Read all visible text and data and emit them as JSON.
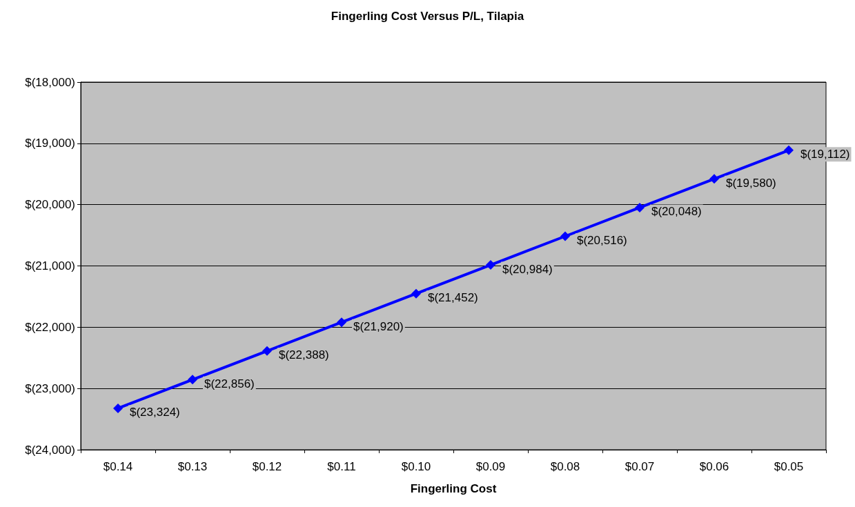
{
  "chart_data": {
    "type": "line",
    "title": "Fingerling Cost Versus P/L, Tilapia",
    "xlabel": "Fingerling Cost",
    "categories": [
      "$0.14",
      "$0.13",
      "$0.12",
      "$0.11",
      "$0.10",
      "$0.09",
      "$0.08",
      "$0.07",
      "$0.06",
      "$0.05"
    ],
    "series": [
      {
        "color": "#0000ff",
        "values": [
          -23324,
          -22856,
          -22388,
          -21920,
          -21452,
          -20984,
          -20516,
          -20048,
          -19580,
          -19112
        ],
        "value_labels": [
          "$(23,324)",
          "$(22,856)",
          "$(22,388)",
          "$(21,920)",
          "$(21,452)",
          "$(20,984)",
          "$(20,516)",
          "$(20,048)",
          "$(19,580)",
          "$(19,112)"
        ]
      }
    ],
    "ylim": [
      -24000,
      -18000
    ],
    "yticks": [
      {
        "value": -24000,
        "label": "$(24,000)"
      },
      {
        "value": -23000,
        "label": "$(23,000)"
      },
      {
        "value": -22000,
        "label": "$(22,000)"
      },
      {
        "value": -21000,
        "label": "$(21,000)"
      },
      {
        "value": -20000,
        "label": "$(20,000)"
      },
      {
        "value": -19000,
        "label": "$(19,000)"
      },
      {
        "value": -18000,
        "label": "$(18,000)"
      }
    ],
    "grid": "y",
    "marker": "diamond",
    "line_style": "solid"
  }
}
